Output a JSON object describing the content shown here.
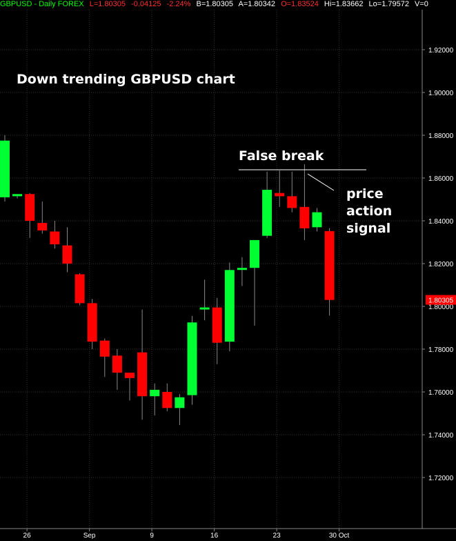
{
  "header": {
    "symbol": "GBPUSD - Daily FOREX",
    "last": "L=1.80305",
    "change": "-0.04125",
    "pct": "-2.24%",
    "bid": "B=1.80305",
    "ask": "A=1.80342",
    "open": "O=1.83524",
    "high": "Hi=1.83662",
    "low": "Lo=1.79572",
    "volume": "V=0"
  },
  "colors": {
    "background": "#000000",
    "up": "#00ff33",
    "down": "#ff0000",
    "grid": "#333333",
    "axis_text": "#ffffff",
    "header_green": "#00ff00",
    "header_red": "#ff3030",
    "header_white": "#ffffff"
  },
  "annotations": {
    "title": "Down trending GBPUSD chart",
    "false_break": "False break",
    "signal_line1": "price",
    "signal_line2": "action",
    "signal_line3": "signal"
  },
  "chart_data": {
    "type": "candlestick",
    "title": "GBPUSD - Daily FOREX",
    "ylim": [
      1.7,
      1.94
    ],
    "y_ticks": [
      "1.92000",
      "1.90000",
      "1.88000",
      "1.86000",
      "1.84000",
      "1.82000",
      "1.80000",
      "1.78000",
      "1.76000",
      "1.74000",
      "1.72000"
    ],
    "y_tick_values": [
      1.92,
      1.9,
      1.88,
      1.86,
      1.84,
      1.82,
      1.8,
      1.78,
      1.76,
      1.74,
      1.72
    ],
    "last_price_label": "1.80305",
    "last_price": 1.80305,
    "x_tick_labels": [
      {
        "label": "26",
        "index": 1
      },
      {
        "label": "Sep",
        "index": 6
      },
      {
        "label": "9",
        "index": 11
      },
      {
        "label": "16",
        "index": 16
      },
      {
        "label": "23",
        "index": 21
      },
      {
        "label": "30 Oct",
        "index": 26
      }
    ],
    "grid": true,
    "candles": [
      {
        "o": 1.851,
        "h": 1.88,
        "l": 1.849,
        "c": 1.8775
      },
      {
        "o": 1.8515,
        "h": 1.8525,
        "l": 1.8505,
        "c": 1.8525
      },
      {
        "o": 1.8525,
        "h": 1.853,
        "l": 1.832,
        "c": 1.84
      },
      {
        "o": 1.839,
        "h": 1.849,
        "l": 1.834,
        "c": 1.8355
      },
      {
        "o": 1.835,
        "h": 1.84,
        "l": 1.827,
        "c": 1.829
      },
      {
        "o": 1.8285,
        "h": 1.837,
        "l": 1.816,
        "c": 1.82
      },
      {
        "o": 1.815,
        "h": 1.8155,
        "l": 1.8005,
        "c": 1.8015
      },
      {
        "o": 1.8015,
        "h": 1.8035,
        "l": 1.78,
        "c": 1.7835
      },
      {
        "o": 1.784,
        "h": 1.785,
        "l": 1.767,
        "c": 1.7765
      },
      {
        "o": 1.777,
        "h": 1.78,
        "l": 1.761,
        "c": 1.769
      },
      {
        "o": 1.769,
        "h": 1.769,
        "l": 1.756,
        "c": 1.7665
      },
      {
        "o": 1.7785,
        "h": 1.7985,
        "l": 1.747,
        "c": 1.758
      },
      {
        "o": 1.758,
        "h": 1.764,
        "l": 1.749,
        "c": 1.761
      },
      {
        "o": 1.76,
        "h": 1.764,
        "l": 1.751,
        "c": 1.7525
      },
      {
        "o": 1.7525,
        "h": 1.759,
        "l": 1.7445,
        "c": 1.7575
      },
      {
        "o": 1.7585,
        "h": 1.7955,
        "l": 1.754,
        "c": 1.7925
      },
      {
        "o": 1.7995,
        "h": 1.8125,
        "l": 1.7935,
        "c": 1.7995
      },
      {
        "o": 1.7995,
        "h": 1.804,
        "l": 1.773,
        "c": 1.783
      },
      {
        "o": 1.7835,
        "h": 1.8205,
        "l": 1.779,
        "c": 1.817
      },
      {
        "o": 1.8175,
        "h": 1.823,
        "l": 1.8095,
        "c": 1.818
      },
      {
        "o": 1.818,
        "h": 1.831,
        "l": 1.791,
        "c": 1.831
      },
      {
        "o": 1.833,
        "h": 1.863,
        "l": 1.832,
        "c": 1.8545
      },
      {
        "o": 1.853,
        "h": 1.8635,
        "l": 1.8465,
        "c": 1.8515
      },
      {
        "o": 1.8515,
        "h": 1.863,
        "l": 1.844,
        "c": 1.846
      },
      {
        "o": 1.8465,
        "h": 1.8665,
        "l": 1.831,
        "c": 1.8365
      },
      {
        "o": 1.837,
        "h": 1.846,
        "l": 1.835,
        "c": 1.844
      },
      {
        "o": 1.8352,
        "h": 1.8366,
        "l": 1.7957,
        "c": 1.803
      }
    ]
  }
}
